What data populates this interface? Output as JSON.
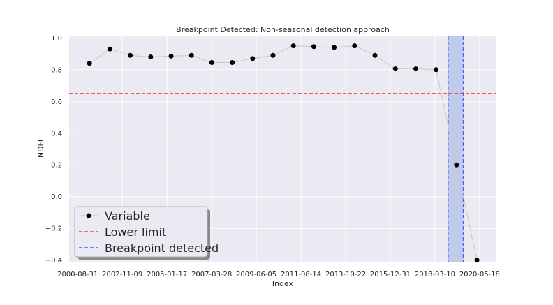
{
  "colors": {
    "axes_bg": "#eaeaf2",
    "grid": "#ffffff",
    "series_line": "#c8c8c8",
    "marker": "#000000",
    "lower_limit": "#ff3b3b",
    "breakpoint_line": "#4a5cff",
    "breakpoint_fill": "#b9c4e8"
  },
  "chart_data": {
    "type": "line",
    "title": "Breakpoint Detected: Non-seasonal detection approach",
    "xlabel": "Index",
    "ylabel": "NDFI",
    "xticks": [
      "2000-08-31",
      "2002-11-09",
      "2005-01-17",
      "2007-03-28",
      "2009-06-05",
      "2011-08-14",
      "2013-10-22",
      "2015-12-31",
      "2018-03-10",
      "2020-05-18"
    ],
    "yticks": [
      "1.0",
      "0.8",
      "0.6",
      "0.4",
      "0.2",
      "0.0",
      "−0.2",
      "−0.4"
    ],
    "ylim": [
      -0.41,
      1.01
    ],
    "xlim": [
      "2000-03-31",
      "2021-03-15"
    ],
    "grid": true,
    "legend_position": "lower-left",
    "series": [
      {
        "name": "Variable",
        "x": [
          "2001-03-31",
          "2002-03-31",
          "2003-03-31",
          "2004-03-31",
          "2005-03-31",
          "2006-03-31",
          "2007-03-31",
          "2008-03-31",
          "2009-03-31",
          "2010-03-31",
          "2011-03-31",
          "2012-03-31",
          "2013-03-31",
          "2014-03-31",
          "2015-03-31",
          "2016-03-31",
          "2017-03-31",
          "2018-03-31",
          "2019-03-31",
          "2020-03-31"
        ],
        "values": [
          0.84,
          0.93,
          0.89,
          0.88,
          0.885,
          0.89,
          0.845,
          0.845,
          0.87,
          0.89,
          0.95,
          0.945,
          0.94,
          0.95,
          0.89,
          0.805,
          0.805,
          0.8,
          0.2,
          -0.4
        ]
      }
    ],
    "lower_limit": {
      "name": "Lower limit",
      "value": 0.65
    },
    "breakpoint": {
      "name": "Breakpoint detected",
      "start": "2018-10-31",
      "end": "2019-07-31"
    }
  }
}
